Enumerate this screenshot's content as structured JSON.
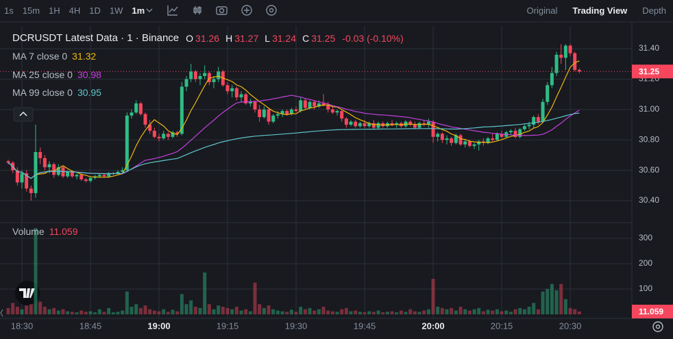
{
  "toolbar": {
    "intervals": [
      {
        "label": "1s"
      },
      {
        "label": "15m"
      },
      {
        "label": "1H"
      },
      {
        "label": "4H"
      },
      {
        "label": "1D"
      },
      {
        "label": "1W"
      },
      {
        "label": "1m",
        "active": true
      }
    ],
    "views": [
      {
        "label": "Original"
      },
      {
        "label": "Trading View",
        "active": true
      },
      {
        "label": "Depth"
      }
    ]
  },
  "chart_data": {
    "type": "candlestick",
    "title": "DCRUSDT Latest Data · 1 · Binance",
    "ohlc_labels": [
      "O",
      "H",
      "L",
      "C"
    ],
    "change": "-0.03 (-0.10%)",
    "ma": [
      {
        "name": "MA 7 close 0",
        "value": 31.32,
        "color": "#f0b90b",
        "period": 7
      },
      {
        "name": "MA 25 close 0",
        "value": 30.98,
        "color": "#c740e0",
        "period": 25
      },
      {
        "name": "MA 99 close 0",
        "value": 30.95,
        "color": "#5fc6cc",
        "period": 99
      }
    ],
    "volume_label": "Volume",
    "colors": {
      "up": "#2ebd85",
      "down": "#f6465d"
    },
    "grid": true,
    "ylim": [
      30.256,
      31.549
    ],
    "yticks": [
      {
        "value": 30.4,
        "label": "30.40"
      },
      {
        "value": 30.6,
        "label": "30.60"
      },
      {
        "value": 30.8,
        "label": "30.80"
      },
      {
        "value": 31.0,
        "label": "31.00"
      },
      {
        "value": 31.2,
        "label": "31.20"
      },
      {
        "value": 31.4,
        "label": "31.40"
      }
    ],
    "volume_ylim": [
      0,
      362
    ],
    "volume_yticks": [
      100,
      200,
      300
    ],
    "x": [
      null,
      null,
      null,
      "18:30",
      null,
      null,
      null,
      null,
      null,
      null,
      null,
      null,
      null,
      null,
      null,
      null,
      null,
      null,
      "18:45",
      null,
      null,
      null,
      null,
      null,
      null,
      null,
      null,
      null,
      null,
      null,
      null,
      null,
      null,
      "19:00",
      null,
      null,
      null,
      null,
      null,
      null,
      null,
      null,
      null,
      null,
      null,
      null,
      null,
      null,
      "19:15",
      null,
      null,
      null,
      null,
      null,
      null,
      null,
      null,
      null,
      null,
      null,
      null,
      null,
      null,
      "19:30",
      null,
      null,
      null,
      null,
      null,
      null,
      null,
      null,
      null,
      null,
      null,
      null,
      null,
      null,
      "19:45",
      null,
      null,
      null,
      null,
      null,
      null,
      null,
      null,
      null,
      null,
      null,
      null,
      null,
      null,
      "20:00",
      null,
      null,
      null,
      null,
      null,
      null,
      null,
      null,
      null,
      null,
      null,
      null,
      null,
      null,
      "20:15",
      null,
      null,
      null,
      null,
      null,
      null,
      null,
      null,
      null,
      null,
      null,
      null,
      null,
      null,
      "20:30",
      null,
      null
    ],
    "ohlcv": [
      [
        30.66,
        30.67,
        30.64,
        30.65,
        25
      ],
      [
        30.65,
        30.66,
        30.58,
        30.6,
        45
      ],
      [
        30.6,
        30.62,
        30.5,
        30.52,
        30
      ],
      [
        30.52,
        30.6,
        30.48,
        30.58,
        20
      ],
      [
        30.58,
        30.6,
        30.46,
        30.48,
        35
      ],
      [
        30.48,
        30.5,
        30.4,
        30.45,
        40
      ],
      [
        30.45,
        30.9,
        30.42,
        30.72,
        340
      ],
      [
        30.72,
        30.75,
        30.64,
        30.68,
        50
      ],
      [
        30.68,
        30.7,
        30.6,
        30.62,
        30
      ],
      [
        30.62,
        30.66,
        30.58,
        30.64,
        20
      ],
      [
        30.64,
        30.65,
        30.55,
        30.57,
        25
      ],
      [
        30.57,
        30.64,
        30.56,
        30.62,
        15
      ],
      [
        30.62,
        30.63,
        30.55,
        30.56,
        20
      ],
      [
        30.56,
        30.6,
        30.55,
        30.59,
        12
      ],
      [
        30.59,
        30.6,
        30.55,
        30.56,
        10
      ],
      [
        30.56,
        30.58,
        30.54,
        30.57,
        8
      ],
      [
        30.57,
        30.58,
        30.53,
        30.54,
        15
      ],
      [
        30.54,
        30.55,
        30.52,
        30.53,
        10
      ],
      [
        30.53,
        30.56,
        30.52,
        30.55,
        12
      ],
      [
        30.55,
        30.57,
        30.54,
        30.56,
        8
      ],
      [
        30.56,
        30.58,
        30.55,
        30.57,
        20
      ],
      [
        30.57,
        30.58,
        30.55,
        30.56,
        10
      ],
      [
        30.56,
        30.59,
        30.55,
        30.58,
        25
      ],
      [
        30.58,
        30.59,
        30.57,
        30.58,
        8
      ],
      [
        30.58,
        30.6,
        30.57,
        30.59,
        10
      ],
      [
        30.59,
        30.62,
        30.58,
        30.6,
        15
      ],
      [
        30.6,
        30.98,
        30.59,
        30.96,
        90
      ],
      [
        30.96,
        31.0,
        30.94,
        30.98,
        30
      ],
      [
        30.98,
        31.06,
        30.97,
        31.04,
        40
      ],
      [
        31.04,
        31.05,
        30.96,
        30.97,
        25
      ],
      [
        30.97,
        30.98,
        30.88,
        30.9,
        35
      ],
      [
        30.9,
        30.93,
        30.84,
        30.86,
        20
      ],
      [
        30.86,
        30.88,
        30.81,
        30.82,
        15
      ],
      [
        30.82,
        30.84,
        30.79,
        30.81,
        12
      ],
      [
        30.81,
        30.86,
        30.8,
        30.84,
        20
      ],
      [
        30.84,
        30.85,
        30.8,
        30.82,
        10
      ],
      [
        30.82,
        30.86,
        30.81,
        30.85,
        18
      ],
      [
        30.85,
        30.86,
        30.82,
        30.84,
        12
      ],
      [
        30.84,
        31.18,
        30.83,
        31.15,
        80
      ],
      [
        31.15,
        31.22,
        31.12,
        31.2,
        40
      ],
      [
        31.2,
        31.3,
        31.18,
        31.25,
        55
      ],
      [
        31.25,
        31.26,
        31.18,
        31.2,
        30
      ],
      [
        31.2,
        31.24,
        31.16,
        31.22,
        25
      ],
      [
        31.22,
        31.29,
        31.2,
        31.24,
        165
      ],
      [
        31.24,
        31.25,
        31.16,
        31.18,
        40
      ],
      [
        31.18,
        31.22,
        31.14,
        31.2,
        20
      ],
      [
        31.2,
        31.28,
        31.18,
        31.25,
        35
      ],
      [
        31.25,
        31.26,
        31.15,
        31.16,
        30
      ],
      [
        31.16,
        31.18,
        31.1,
        31.12,
        25
      ],
      [
        31.12,
        31.16,
        31.08,
        31.14,
        20
      ],
      [
        31.14,
        31.15,
        31.06,
        31.08,
        30
      ],
      [
        31.08,
        31.12,
        31.05,
        31.1,
        15
      ],
      [
        31.1,
        31.11,
        31.03,
        31.04,
        20
      ],
      [
        31.04,
        31.07,
        31.02,
        31.05,
        12
      ],
      [
        31.05,
        31.06,
        30.98,
        31.0,
        125
      ],
      [
        31.0,
        31.03,
        30.92,
        30.95,
        40
      ],
      [
        30.95,
        31.02,
        30.94,
        31.0,
        25
      ],
      [
        31.0,
        31.01,
        30.9,
        30.92,
        35
      ],
      [
        30.92,
        30.97,
        30.91,
        30.96,
        20
      ],
      [
        30.96,
        30.99,
        30.94,
        30.97,
        15
      ],
      [
        30.97,
        31.0,
        30.95,
        30.99,
        12
      ],
      [
        30.99,
        31.0,
        30.96,
        30.97,
        10
      ],
      [
        30.97,
        31.01,
        30.96,
        31.0,
        18
      ],
      [
        31.0,
        31.02,
        30.98,
        30.99,
        10
      ],
      [
        30.99,
        31.08,
        30.98,
        31.06,
        30
      ],
      [
        31.06,
        31.07,
        31.0,
        31.01,
        20
      ],
      [
        31.01,
        31.06,
        31.0,
        31.05,
        25
      ],
      [
        31.05,
        31.06,
        31.0,
        31.02,
        15
      ],
      [
        31.02,
        31.06,
        31.01,
        31.04,
        20
      ],
      [
        31.04,
        31.1,
        31.02,
        31.03,
        30
      ],
      [
        31.03,
        31.05,
        30.98,
        31.0,
        15
      ],
      [
        31.0,
        31.02,
        30.97,
        30.98,
        12
      ],
      [
        30.98,
        31.0,
        30.96,
        30.99,
        10
      ],
      [
        30.99,
        31.0,
        30.92,
        30.94,
        20
      ],
      [
        30.94,
        30.95,
        30.88,
        30.9,
        25
      ],
      [
        30.9,
        30.93,
        30.89,
        30.92,
        12
      ],
      [
        30.92,
        30.93,
        30.88,
        30.89,
        15
      ],
      [
        30.89,
        30.92,
        30.88,
        30.91,
        10
      ],
      [
        30.91,
        30.93,
        30.88,
        30.89,
        8
      ],
      [
        30.89,
        30.92,
        30.88,
        30.91,
        12
      ],
      [
        30.91,
        30.93,
        30.87,
        30.88,
        10
      ],
      [
        30.88,
        30.92,
        30.87,
        30.91,
        15
      ],
      [
        30.91,
        30.92,
        30.88,
        30.89,
        8
      ],
      [
        30.89,
        30.92,
        30.88,
        30.91,
        10
      ],
      [
        30.91,
        30.93,
        30.89,
        30.9,
        12
      ],
      [
        30.9,
        30.92,
        30.88,
        30.91,
        8
      ],
      [
        30.91,
        30.92,
        30.88,
        30.89,
        15
      ],
      [
        30.89,
        30.93,
        30.88,
        30.92,
        10
      ],
      [
        30.92,
        30.93,
        30.89,
        30.9,
        20
      ],
      [
        30.9,
        30.92,
        30.87,
        30.88,
        12
      ],
      [
        30.88,
        30.92,
        30.87,
        30.91,
        10
      ],
      [
        30.91,
        30.93,
        30.89,
        30.9,
        15
      ],
      [
        30.9,
        30.94,
        30.88,
        30.92,
        20
      ],
      [
        30.92,
        30.93,
        30.78,
        30.82,
        140
      ],
      [
        30.82,
        30.85,
        30.79,
        30.84,
        30
      ],
      [
        30.84,
        30.85,
        30.78,
        30.8,
        25
      ],
      [
        30.8,
        30.83,
        30.77,
        30.81,
        20
      ],
      [
        30.81,
        30.82,
        30.76,
        30.78,
        25
      ],
      [
        30.78,
        30.84,
        30.77,
        30.83,
        15
      ],
      [
        30.83,
        30.84,
        30.76,
        30.77,
        30
      ],
      [
        30.77,
        30.8,
        30.75,
        30.79,
        20
      ],
      [
        30.79,
        30.8,
        30.75,
        30.76,
        15
      ],
      [
        30.76,
        30.78,
        30.74,
        30.77,
        20
      ],
      [
        30.77,
        30.8,
        30.73,
        30.79,
        25
      ],
      [
        30.79,
        30.81,
        30.76,
        30.78,
        12
      ],
      [
        30.78,
        30.82,
        30.77,
        30.81,
        18
      ],
      [
        30.81,
        30.84,
        30.79,
        30.8,
        15
      ],
      [
        30.8,
        30.85,
        30.79,
        30.84,
        20
      ],
      [
        30.84,
        30.86,
        30.81,
        30.82,
        12
      ],
      [
        30.82,
        30.86,
        30.81,
        30.85,
        15
      ],
      [
        30.85,
        30.87,
        30.83,
        30.86,
        10
      ],
      [
        30.86,
        30.88,
        30.81,
        30.82,
        20
      ],
      [
        30.82,
        30.88,
        30.81,
        30.87,
        25
      ],
      [
        30.87,
        30.9,
        30.86,
        30.89,
        20
      ],
      [
        30.89,
        30.92,
        30.87,
        30.9,
        30
      ],
      [
        30.9,
        30.96,
        30.88,
        30.95,
        45
      ],
      [
        30.95,
        30.97,
        30.9,
        30.92,
        20
      ],
      [
        30.92,
        31.07,
        30.91,
        31.05,
        90
      ],
      [
        31.05,
        31.18,
        31.03,
        31.16,
        100
      ],
      [
        31.16,
        31.28,
        31.14,
        31.24,
        120
      ],
      [
        31.24,
        31.38,
        31.22,
        31.36,
        95
      ],
      [
        31.36,
        31.43,
        31.3,
        31.34,
        120
      ],
      [
        31.34,
        31.43,
        31.26,
        31.42,
        60
      ],
      [
        31.42,
        31.43,
        31.35,
        31.37,
        25
      ],
      [
        31.37,
        31.38,
        31.25,
        31.26,
        20
      ],
      [
        31.26,
        31.27,
        31.24,
        31.25,
        11.059
      ]
    ]
  }
}
